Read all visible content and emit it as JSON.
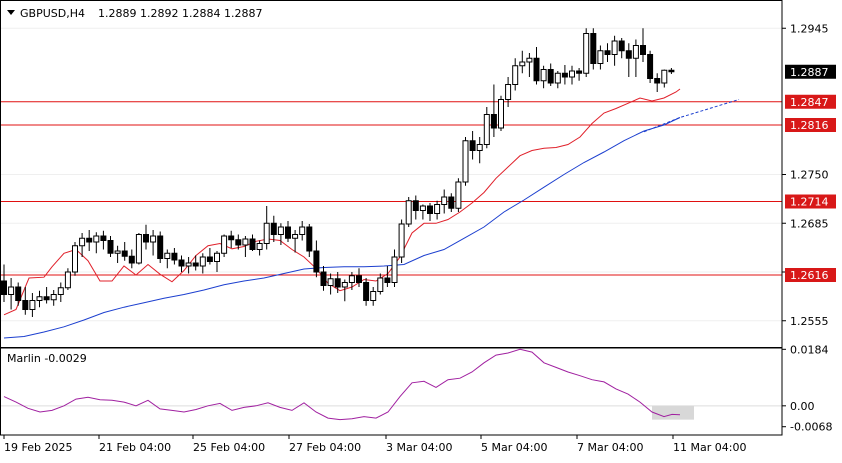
{
  "chart_data": {
    "type": "candlestick",
    "symbol": "GBPUSD,H4",
    "ohlc_header": [
      "1.2889",
      "1.2892",
      "1.2884",
      "1.2887"
    ],
    "price_axis": {
      "min": 1.252,
      "max": 1.298,
      "ticks": [
        {
          "label": "1.2945",
          "value": 1.2945
        },
        {
          "label": "1.2750",
          "value": 1.275
        },
        {
          "label": "1.2685",
          "value": 1.2685
        },
        {
          "label": "1.2620",
          "value": 1.262
        },
        {
          "label": "1.2555",
          "value": 1.2555
        }
      ]
    },
    "current_price": {
      "label": "1.2887",
      "value": 1.2887
    },
    "levels": [
      {
        "label": "1.2847",
        "value": 1.2847
      },
      {
        "label": "1.2816",
        "value": 1.2816
      },
      {
        "label": "1.2714",
        "value": 1.2714
      },
      {
        "label": "1.2616",
        "value": 1.2616
      }
    ],
    "time_axis": [
      "19 Feb 2025",
      "21 Feb 04:00",
      "25 Feb 04:00",
      "27 Feb 04:00",
      "3 Mar 04:00",
      "5 Mar 04:00",
      "7 Mar 04:00",
      "11 Mar 04:00"
    ],
    "candles": [
      [
        1.2608,
        1.263,
        1.258,
        1.259
      ],
      [
        1.259,
        1.2612,
        1.257,
        1.26
      ],
      [
        1.26,
        1.2606,
        1.2575,
        1.2582
      ],
      [
        1.2582,
        1.26,
        1.2563,
        1.257
      ],
      [
        1.257,
        1.2592,
        1.256,
        1.2582
      ],
      [
        1.2582,
        1.2595,
        1.2573,
        1.2587
      ],
      [
        1.2587,
        1.26,
        1.2578,
        1.2583
      ],
      [
        1.2583,
        1.2596,
        1.2575,
        1.259
      ],
      [
        1.259,
        1.2606,
        1.258,
        1.2599
      ],
      [
        1.2599,
        1.2625,
        1.2596,
        1.262
      ],
      [
        1.262,
        1.266,
        1.2615,
        1.2655
      ],
      [
        1.2655,
        1.2672,
        1.264,
        1.2665
      ],
      [
        1.2665,
        1.2676,
        1.2648,
        1.266
      ],
      [
        1.266,
        1.2673,
        1.2645,
        1.2668
      ],
      [
        1.2668,
        1.2675,
        1.265,
        1.2662
      ],
      [
        1.2662,
        1.2668,
        1.264,
        1.2645
      ],
      [
        1.2645,
        1.2655,
        1.2632,
        1.2648
      ],
      [
        1.2648,
        1.266,
        1.2635,
        1.2641
      ],
      [
        1.2641,
        1.265,
        1.2625,
        1.2632
      ],
      [
        1.2632,
        1.2672,
        1.263,
        1.267
      ],
      [
        1.267,
        1.2683,
        1.265,
        1.266
      ],
      [
        1.266,
        1.2676,
        1.2642,
        1.2668
      ],
      [
        1.2668,
        1.2674,
        1.2632,
        1.2638
      ],
      [
        1.2638,
        1.265,
        1.2625,
        1.2645
      ],
      [
        1.2645,
        1.2652,
        1.263,
        1.2636
      ],
      [
        1.2636,
        1.2642,
        1.262,
        1.2628
      ],
      [
        1.2628,
        1.264,
        1.2618,
        1.2632
      ],
      [
        1.2632,
        1.2642,
        1.2622,
        1.2628
      ],
      [
        1.2628,
        1.2645,
        1.2618,
        1.264
      ],
      [
        1.264,
        1.2652,
        1.263,
        1.2634
      ],
      [
        1.2634,
        1.2648,
        1.262,
        1.2645
      ],
      [
        1.2645,
        1.267,
        1.264,
        1.2668
      ],
      [
        1.2668,
        1.2675,
        1.2652,
        1.2663
      ],
      [
        1.2663,
        1.267,
        1.265,
        1.2656
      ],
      [
        1.2656,
        1.2668,
        1.264,
        1.2664
      ],
      [
        1.2664,
        1.267,
        1.2648,
        1.265
      ],
      [
        1.265,
        1.2662,
        1.2642,
        1.2658
      ],
      [
        1.2658,
        1.2708,
        1.265,
        1.2685
      ],
      [
        1.2685,
        1.2695,
        1.266,
        1.267
      ],
      [
        1.267,
        1.2685,
        1.2656,
        1.268
      ],
      [
        1.268,
        1.2688,
        1.266,
        1.2665
      ],
      [
        1.2665,
        1.2676,
        1.2646,
        1.267
      ],
      [
        1.267,
        1.2688,
        1.2662,
        1.268
      ],
      [
        1.268,
        1.2684,
        1.264,
        1.2648
      ],
      [
        1.2648,
        1.2662,
        1.2613,
        1.262
      ],
      [
        1.262,
        1.2628,
        1.2595,
        1.2602
      ],
      [
        1.2602,
        1.2618,
        1.259,
        1.2611
      ],
      [
        1.2611,
        1.262,
        1.2592,
        1.26
      ],
      [
        1.26,
        1.261,
        1.2581,
        1.2606
      ],
      [
        1.2606,
        1.262,
        1.2596,
        1.2615
      ],
      [
        1.2615,
        1.2625,
        1.26,
        1.2606
      ],
      [
        1.2606,
        1.2612,
        1.2575,
        1.2582
      ],
      [
        1.2582,
        1.26,
        1.2575,
        1.2594
      ],
      [
        1.2594,
        1.2618,
        1.259,
        1.2612
      ],
      [
        1.2612,
        1.2628,
        1.26,
        1.2606
      ],
      [
        1.2606,
        1.265,
        1.26,
        1.264
      ],
      [
        1.264,
        1.269,
        1.2632,
        1.2684
      ],
      [
        1.2684,
        1.272,
        1.268,
        1.2715
      ],
      [
        1.2715,
        1.2722,
        1.269,
        1.2702
      ],
      [
        1.2702,
        1.271,
        1.269,
        1.2708
      ],
      [
        1.2708,
        1.2712,
        1.2688,
        1.2698
      ],
      [
        1.2698,
        1.2715,
        1.269,
        1.271
      ],
      [
        1.271,
        1.273,
        1.2698,
        1.272
      ],
      [
        1.272,
        1.2725,
        1.27,
        1.2705
      ],
      [
        1.2705,
        1.2745,
        1.27,
        1.274
      ],
      [
        1.274,
        1.28,
        1.2735,
        1.2795
      ],
      [
        1.2795,
        1.2808,
        1.277,
        1.2782
      ],
      [
        1.2782,
        1.28,
        1.2765,
        1.279
      ],
      [
        1.279,
        1.284,
        1.2785,
        1.283
      ],
      [
        1.283,
        1.287,
        1.28,
        1.2812
      ],
      [
        1.2812,
        1.2855,
        1.2808,
        1.285
      ],
      [
        1.285,
        1.288,
        1.284,
        1.287
      ],
      [
        1.287,
        1.2905,
        1.2862,
        1.2895
      ],
      [
        1.2895,
        1.2915,
        1.2885,
        1.29
      ],
      [
        1.29,
        1.2912,
        1.288,
        1.2905
      ],
      [
        1.2905,
        1.292,
        1.287,
        1.2875
      ],
      [
        1.2875,
        1.2895,
        1.2865,
        1.289
      ],
      [
        1.289,
        1.2898,
        1.2868,
        1.2872
      ],
      [
        1.2872,
        1.2888,
        1.2865,
        1.2885
      ],
      [
        1.2885,
        1.2896,
        1.287,
        1.288
      ],
      [
        1.288,
        1.2895,
        1.287,
        1.2888
      ],
      [
        1.2888,
        1.2892,
        1.2875,
        1.2885
      ],
      [
        1.2885,
        1.2945,
        1.288,
        1.2938
      ],
      [
        1.2938,
        1.2945,
        1.289,
        1.2898
      ],
      [
        1.2898,
        1.2922,
        1.289,
        1.2915
      ],
      [
        1.2915,
        1.2925,
        1.29,
        1.291
      ],
      [
        1.291,
        1.2935,
        1.2895,
        1.2928
      ],
      [
        1.2928,
        1.2932,
        1.2905,
        1.2915
      ],
      [
        1.2915,
        1.2925,
        1.288,
        1.2905
      ],
      [
        1.2905,
        1.293,
        1.288,
        1.2922
      ],
      [
        1.2922,
        1.2945,
        1.29,
        1.291
      ],
      [
        1.291,
        1.2915,
        1.2872,
        1.2878
      ],
      [
        1.2878,
        1.2885,
        1.286,
        1.2872
      ],
      [
        1.2872,
        1.289,
        1.2866,
        1.2889
      ],
      [
        1.2889,
        1.2892,
        1.2884,
        1.2887
      ]
    ],
    "ma_fast": [
      [
        0,
        1.2563
      ],
      [
        12,
        1.257
      ],
      [
        25,
        1.2612
      ],
      [
        40,
        1.2613
      ],
      [
        48,
        1.2627
      ],
      [
        60,
        1.2645
      ],
      [
        72,
        1.265
      ],
      [
        84,
        1.2635
      ],
      [
        96,
        1.2608
      ],
      [
        108,
        1.2608
      ],
      [
        120,
        1.2628
      ],
      [
        132,
        1.2616
      ],
      [
        144,
        1.263
      ],
      [
        156,
        1.2617
      ],
      [
        168,
        1.2607
      ],
      [
        180,
        1.2622
      ],
      [
        192,
        1.2642
      ],
      [
        204,
        1.2655
      ],
      [
        216,
        1.2658
      ],
      [
        228,
        1.2651
      ],
      [
        240,
        1.2654
      ],
      [
        252,
        1.2661
      ],
      [
        264,
        1.2664
      ],
      [
        276,
        1.2662
      ],
      [
        288,
        1.265
      ],
      [
        300,
        1.264
      ],
      [
        312,
        1.2625
      ],
      [
        324,
        1.2605
      ],
      [
        336,
        1.2595
      ],
      [
        348,
        1.26
      ],
      [
        360,
        1.261
      ],
      [
        372,
        1.2608
      ],
      [
        384,
        1.2618
      ],
      [
        396,
        1.264
      ],
      [
        408,
        1.2672
      ],
      [
        420,
        1.2685
      ],
      [
        432,
        1.2685
      ],
      [
        444,
        1.269
      ],
      [
        456,
        1.27
      ],
      [
        468,
        1.2712
      ],
      [
        480,
        1.2726
      ],
      [
        492,
        1.2745
      ],
      [
        504,
        1.276
      ],
      [
        516,
        1.2775
      ],
      [
        528,
        1.2782
      ],
      [
        540,
        1.2785
      ],
      [
        552,
        1.2786
      ],
      [
        564,
        1.279
      ],
      [
        576,
        1.28
      ],
      [
        588,
        1.2818
      ],
      [
        600,
        1.2832
      ],
      [
        612,
        1.2838
      ],
      [
        624,
        1.2845
      ],
      [
        636,
        1.2852
      ],
      [
        648,
        1.2848
      ],
      [
        660,
        1.2852
      ],
      [
        672,
        1.286
      ],
      [
        676,
        1.2864
      ]
    ],
    "ma_slow": [
      [
        0,
        1.2532
      ],
      [
        20,
        1.2534
      ],
      [
        40,
        1.254
      ],
      [
        60,
        1.2547
      ],
      [
        80,
        1.2556
      ],
      [
        100,
        1.2566
      ],
      [
        120,
        1.2573
      ],
      [
        140,
        1.2579
      ],
      [
        160,
        1.2585
      ],
      [
        180,
        1.259
      ],
      [
        200,
        1.2596
      ],
      [
        220,
        1.2603
      ],
      [
        240,
        1.2608
      ],
      [
        260,
        1.2612
      ],
      [
        280,
        1.2618
      ],
      [
        300,
        1.2624
      ],
      [
        320,
        1.2626
      ],
      [
        340,
        1.2627
      ],
      [
        360,
        1.2627
      ],
      [
        380,
        1.2628
      ],
      [
        400,
        1.263
      ],
      [
        420,
        1.2642
      ],
      [
        440,
        1.265
      ],
      [
        460,
        1.2665
      ],
      [
        480,
        1.268
      ],
      [
        500,
        1.27
      ],
      [
        520,
        1.2716
      ],
      [
        540,
        1.2733
      ],
      [
        560,
        1.275
      ],
      [
        580,
        1.2766
      ],
      [
        600,
        1.278
      ],
      [
        620,
        1.2795
      ],
      [
        640,
        1.2808
      ],
      [
        660,
        1.2816
      ],
      [
        676,
        1.2826
      ]
    ],
    "trend_line": [
      [
        640,
        1.2807
      ],
      [
        676,
        1.2826
      ],
      [
        735,
        1.285
      ]
    ],
    "marlin": {
      "label": "Marlin -0.0029",
      "ticks": [
        {
          "label": "0.0184",
          "value": 0.0184
        },
        {
          "label": "0.00",
          "value": 0.0
        },
        {
          "label": "-0.0068",
          "value": -0.0068
        }
      ],
      "min": -0.0095,
      "max": 0.0185,
      "values": [
        [
          0,
          0.003
        ],
        [
          12,
          0.0012
        ],
        [
          24,
          -0.0008
        ],
        [
          36,
          -0.002
        ],
        [
          48,
          -0.0015
        ],
        [
          60,
          0.0
        ],
        [
          72,
          0.0022
        ],
        [
          84,
          0.0028
        ],
        [
          96,
          0.002
        ],
        [
          108,
          0.0018
        ],
        [
          120,
          0.0012
        ],
        [
          132,
          0.0
        ],
        [
          144,
          0.0018
        ],
        [
          156,
          -0.001
        ],
        [
          168,
          -0.0015
        ],
        [
          180,
          -0.002
        ],
        [
          192,
          -0.0012
        ],
        [
          204,
          0.0
        ],
        [
          216,
          0.0008
        ],
        [
          228,
          -0.0015
        ],
        [
          240,
          -0.0005
        ],
        [
          252,
          0.0
        ],
        [
          264,
          0.001
        ],
        [
          276,
          -0.0005
        ],
        [
          288,
          -0.0015
        ],
        [
          300,
          0.001
        ],
        [
          312,
          -0.002
        ],
        [
          324,
          -0.004
        ],
        [
          336,
          -0.0045
        ],
        [
          348,
          -0.0042
        ],
        [
          360,
          -0.0035
        ],
        [
          372,
          -0.004
        ],
        [
          384,
          -0.002
        ],
        [
          396,
          0.003
        ],
        [
          408,
          0.0075
        ],
        [
          420,
          0.008
        ],
        [
          432,
          0.006
        ],
        [
          444,
          0.0085
        ],
        [
          456,
          0.009
        ],
        [
          468,
          0.011
        ],
        [
          480,
          0.014
        ],
        [
          492,
          0.0165
        ],
        [
          504,
          0.0172
        ],
        [
          516,
          0.0184
        ],
        [
          528,
          0.0175
        ],
        [
          540,
          0.014
        ],
        [
          552,
          0.0125
        ],
        [
          564,
          0.011
        ],
        [
          576,
          0.0098
        ],
        [
          588,
          0.0085
        ],
        [
          600,
          0.0078
        ],
        [
          612,
          0.0055
        ],
        [
          624,
          0.0038
        ],
        [
          636,
          0.0012
        ],
        [
          648,
          -0.002
        ],
        [
          660,
          -0.0035
        ],
        [
          668,
          -0.0028
        ],
        [
          676,
          -0.0029
        ]
      ]
    },
    "colors": {
      "bull": "#ffffff",
      "bear": "#000000",
      "ma_fast": "#e0202a",
      "ma_slow": "#1c3fcf",
      "level_line": "#e01010",
      "level_tag": "#d81818",
      "marlin": "#a020a0"
    }
  }
}
